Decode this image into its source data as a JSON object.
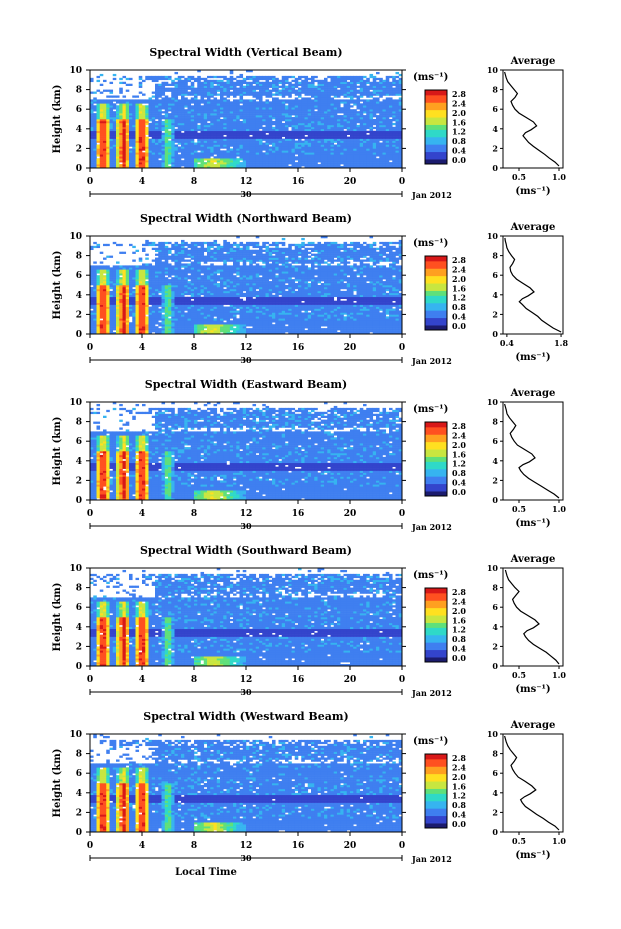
{
  "chart_data": [
    {
      "type": "heatmap",
      "title": "Spectral Width (Vertical Beam)",
      "ylabel": "Height (km)",
      "x_ticks": [
        "0",
        "4",
        "8",
        "12",
        "16",
        "20",
        "0"
      ],
      "y_ticks": [
        "0",
        "2",
        "4",
        "6",
        "8",
        "10"
      ],
      "xlim": [
        0,
        24
      ],
      "ylim": [
        0,
        10
      ],
      "date_label": "30",
      "date_suffix": "Jan 2012",
      "colorbar": {
        "unit": "(ms⁻¹)",
        "labels": [
          "0.0",
          "0.4",
          "0.8",
          "1.2",
          "1.6",
          "2.0",
          "2.4",
          "2.8"
        ],
        "range": [
          0,
          3.0
        ]
      },
      "profile": {
        "title": "Average",
        "xlabel": "(ms⁻¹)",
        "x_ticks": [
          "0.5",
          "1.0"
        ],
        "xlim": [
          0.3,
          1.05
        ],
        "y_ticks": [
          "0",
          "2",
          "4",
          "6",
          "8",
          "10"
        ],
        "ylim": [
          0,
          10
        ],
        "x": [
          1.0,
          0.95,
          0.88,
          0.82,
          0.75,
          0.68,
          0.62,
          0.58,
          0.55,
          0.58,
          0.65,
          0.72,
          0.68,
          0.58,
          0.5,
          0.45,
          0.42,
          0.4,
          0.45,
          0.48,
          0.44,
          0.4,
          0.36,
          0.34,
          0.33,
          0.32
        ],
        "y": [
          0.2,
          0.6,
          1.0,
          1.4,
          1.8,
          2.2,
          2.6,
          3.0,
          3.3,
          3.6,
          3.9,
          4.3,
          4.7,
          5.2,
          5.6,
          6.0,
          6.4,
          6.8,
          7.2,
          7.6,
          8.0,
          8.4,
          8.8,
          9.2,
          9.5,
          9.8
        ]
      }
    },
    {
      "type": "heatmap",
      "title": "Spectral Width (Northward Beam)",
      "ylabel": "Height (km)",
      "x_ticks": [
        "0",
        "4",
        "8",
        "12",
        "16",
        "20",
        "0"
      ],
      "y_ticks": [
        "0",
        "2",
        "4",
        "6",
        "8",
        "10"
      ],
      "xlim": [
        0,
        24
      ],
      "ylim": [
        0,
        10
      ],
      "date_label": "30",
      "date_suffix": "Jan 2012",
      "colorbar": {
        "unit": "(ms⁻¹)",
        "labels": [
          "0.0",
          "0.4",
          "0.8",
          "1.2",
          "1.6",
          "2.0",
          "2.4",
          "2.8"
        ],
        "range": [
          0,
          3.0
        ]
      },
      "profile": {
        "title": "Average",
        "xlabel": "(ms⁻¹)",
        "x_ticks": [
          "0.4",
          "1.8"
        ],
        "xlim": [
          0.3,
          1.85
        ],
        "y_ticks": [
          "0",
          "2",
          "4",
          "6",
          "8",
          "10"
        ],
        "ylim": [
          0,
          10
        ],
        "x": [
          1.8,
          1.6,
          1.45,
          1.3,
          1.2,
          1.05,
          0.9,
          0.8,
          0.72,
          0.8,
          0.95,
          1.1,
          1.0,
          0.8,
          0.65,
          0.55,
          0.5,
          0.48,
          0.55,
          0.6,
          0.52,
          0.45,
          0.4,
          0.38,
          0.36,
          0.35
        ],
        "y": [
          0.2,
          0.6,
          1.0,
          1.4,
          1.8,
          2.2,
          2.6,
          3.0,
          3.3,
          3.6,
          3.9,
          4.3,
          4.7,
          5.2,
          5.6,
          6.0,
          6.4,
          6.8,
          7.2,
          7.6,
          8.0,
          8.4,
          8.8,
          9.2,
          9.5,
          9.8
        ]
      }
    },
    {
      "type": "heatmap",
      "title": "Spectral Width (Eastward Beam)",
      "ylabel": "Height (km)",
      "x_ticks": [
        "0",
        "4",
        "8",
        "12",
        "16",
        "20",
        "0"
      ],
      "y_ticks": [
        "0",
        "2",
        "4",
        "6",
        "8",
        "10"
      ],
      "xlim": [
        0,
        24
      ],
      "ylim": [
        0,
        10
      ],
      "date_label": "30",
      "date_suffix": "Jan 2012",
      "colorbar": {
        "unit": "(ms⁻¹)",
        "labels": [
          "0.0",
          "0.4",
          "0.8",
          "1.2",
          "1.6",
          "2.0",
          "2.4",
          "2.8"
        ],
        "range": [
          0,
          3.0
        ]
      },
      "profile": {
        "title": "Average",
        "xlabel": "(ms⁻¹)",
        "x_ticks": [
          "0.5",
          "1.0"
        ],
        "xlim": [
          0.3,
          1.05
        ],
        "y_ticks": [
          "0",
          "2",
          "4",
          "6",
          "8",
          "10"
        ],
        "ylim": [
          0,
          10
        ],
        "x": [
          1.0,
          0.94,
          0.86,
          0.78,
          0.7,
          0.62,
          0.56,
          0.52,
          0.5,
          0.55,
          0.63,
          0.7,
          0.66,
          0.56,
          0.48,
          0.44,
          0.41,
          0.39,
          0.43,
          0.46,
          0.42,
          0.38,
          0.35,
          0.34,
          0.33,
          0.32
        ],
        "y": [
          0.2,
          0.6,
          1.0,
          1.4,
          1.8,
          2.2,
          2.6,
          3.0,
          3.3,
          3.6,
          3.9,
          4.3,
          4.7,
          5.2,
          5.6,
          6.0,
          6.4,
          6.8,
          7.2,
          7.6,
          8.0,
          8.4,
          8.8,
          9.2,
          9.5,
          9.8
        ]
      }
    },
    {
      "type": "heatmap",
      "title": "Spectral Width (Southward Beam)",
      "ylabel": "Height (km)",
      "x_ticks": [
        "0",
        "4",
        "8",
        "12",
        "16",
        "20",
        "0"
      ],
      "y_ticks": [
        "0",
        "2",
        "4",
        "6",
        "8",
        "10"
      ],
      "xlim": [
        0,
        24
      ],
      "ylim": [
        0,
        10
      ],
      "date_label": "30",
      "date_suffix": "Jan 2012",
      "colorbar": {
        "unit": "(ms⁻¹)",
        "labels": [
          "0.0",
          "0.4",
          "0.8",
          "1.2",
          "1.6",
          "2.0",
          "2.4",
          "2.8"
        ],
        "range": [
          0,
          3.0
        ]
      },
      "profile": {
        "title": "Average",
        "xlabel": "(ms⁻¹)",
        "x_ticks": [
          "0.5",
          "1.0"
        ],
        "xlim": [
          0.3,
          1.05
        ],
        "y_ticks": [
          "0",
          "2",
          "4",
          "6",
          "8",
          "10"
        ],
        "ylim": [
          0,
          10
        ],
        "x": [
          1.0,
          0.96,
          0.9,
          0.84,
          0.76,
          0.68,
          0.62,
          0.58,
          0.56,
          0.6,
          0.68,
          0.75,
          0.7,
          0.6,
          0.52,
          0.47,
          0.44,
          0.42,
          0.46,
          0.5,
          0.45,
          0.41,
          0.37,
          0.35,
          0.34,
          0.33
        ],
        "y": [
          0.2,
          0.6,
          1.0,
          1.4,
          1.8,
          2.2,
          2.6,
          3.0,
          3.3,
          3.6,
          3.9,
          4.3,
          4.7,
          5.2,
          5.6,
          6.0,
          6.4,
          6.8,
          7.2,
          7.6,
          8.0,
          8.4,
          8.8,
          9.2,
          9.5,
          9.8
        ]
      }
    },
    {
      "type": "heatmap",
      "title": "Spectral Width (Westward Beam)",
      "ylabel": "Height (km)",
      "xlabel": "Local Time",
      "x_ticks": [
        "0",
        "4",
        "8",
        "12",
        "16",
        "20",
        "0"
      ],
      "y_ticks": [
        "0",
        "2",
        "4",
        "6",
        "8",
        "10"
      ],
      "xlim": [
        0,
        24
      ],
      "ylim": [
        0,
        10
      ],
      "date_label": "30",
      "date_suffix": "Jan 2012",
      "colorbar": {
        "unit": "(ms⁻¹)",
        "labels": [
          "0.0",
          "0.4",
          "0.8",
          "1.2",
          "1.6",
          "2.0",
          "2.4",
          "2.8"
        ],
        "range": [
          0,
          3.0
        ]
      },
      "profile": {
        "title": "Average",
        "xlabel": "(ms⁻¹)",
        "x_ticks": [
          "0.5",
          "1.0"
        ],
        "xlim": [
          0.3,
          1.05
        ],
        "y_ticks": [
          "0",
          "2",
          "4",
          "6",
          "8",
          "10"
        ],
        "ylim": [
          0,
          10
        ],
        "x": [
          1.0,
          0.95,
          0.87,
          0.8,
          0.72,
          0.65,
          0.58,
          0.54,
          0.52,
          0.57,
          0.64,
          0.71,
          0.66,
          0.57,
          0.49,
          0.45,
          0.42,
          0.4,
          0.44,
          0.47,
          0.43,
          0.39,
          0.36,
          0.34,
          0.33,
          0.32
        ],
        "y": [
          0.2,
          0.6,
          1.0,
          1.4,
          1.8,
          2.2,
          2.6,
          3.0,
          3.3,
          3.6,
          3.9,
          4.3,
          4.7,
          5.2,
          5.6,
          6.0,
          6.4,
          6.8,
          7.2,
          7.6,
          8.0,
          8.4,
          8.8,
          9.2,
          9.5,
          9.8
        ]
      }
    }
  ],
  "colors": {
    "colormap": [
      "#1b1b6e",
      "#3344cc",
      "#3f7ff0",
      "#36b4f0",
      "#2fd9c8",
      "#5fe07a",
      "#c8e640",
      "#ffe020",
      "#ffa020",
      "#ff5020",
      "#d81818"
    ]
  }
}
